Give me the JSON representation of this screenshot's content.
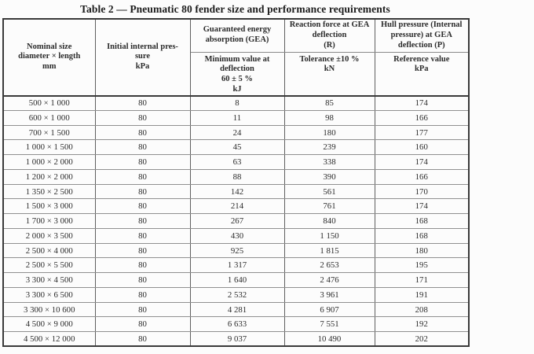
{
  "title": "Table 2 — Pneumatic 80 fender size and performance requirements",
  "colors": {
    "background": "#fcfcfc",
    "text": "#2b2b2b",
    "outer_border": "#3a3a3a",
    "inner_vertical_border": "#5f5f5f",
    "inner_horizontal_border": "#909090"
  },
  "table": {
    "header": {
      "nominal_size": "Nominal size\ndiameter × length\nmm",
      "initial_pressure": "Initial internal pres-\nsure\nkPa",
      "gea_top": "Guaranteed energy\nabsorption (GEA)",
      "gea_sub": "Minimum value at\ndeflection\n60 ± 5 %\nkJ",
      "reaction_top": "Reaction force at GEA\ndeflection\n(R)",
      "reaction_sub": "Tolerance ±10 %\nkN",
      "hull_top": "Hull pressure (Internal\npressure) at GEA\ndeflection (P)",
      "hull_sub": "Reference value\nkPa"
    },
    "rows": [
      [
        "500 × 1 000",
        "80",
        "8",
        "85",
        "174"
      ],
      [
        "600 × 1 000",
        "80",
        "11",
        "98",
        "166"
      ],
      [
        "700 × 1 500",
        "80",
        "24",
        "180",
        "177"
      ],
      [
        "1 000 × 1 500",
        "80",
        "45",
        "239",
        "160"
      ],
      [
        "1 000 × 2 000",
        "80",
        "63",
        "338",
        "174"
      ],
      [
        "1 200 × 2 000",
        "80",
        "88",
        "390",
        "166"
      ],
      [
        "1 350 × 2 500",
        "80",
        "142",
        "561",
        "170"
      ],
      [
        "1 500 × 3 000",
        "80",
        "214",
        "761",
        "174"
      ],
      [
        "1 700 × 3 000",
        "80",
        "267",
        "840",
        "168"
      ],
      [
        "2 000 × 3 500",
        "80",
        "430",
        "1 150",
        "168"
      ],
      [
        "2 500 × 4 000",
        "80",
        "925",
        "1 815",
        "180"
      ],
      [
        "2 500 × 5 500",
        "80",
        "1 317",
        "2 653",
        "195"
      ],
      [
        "3 300 × 4 500",
        "80",
        "1 640",
        "2 476",
        "171"
      ],
      [
        "3 300 × 6 500",
        "80",
        "2 532",
        "3 961",
        "191"
      ],
      [
        "3 300 × 10 600",
        "80",
        "4 281",
        "6 907",
        "208"
      ],
      [
        "4 500 × 9 000",
        "80",
        "6 633",
        "7 551",
        "192"
      ],
      [
        "4 500 × 12 000",
        "80",
        "9 037",
        "10 490",
        "202"
      ]
    ]
  }
}
